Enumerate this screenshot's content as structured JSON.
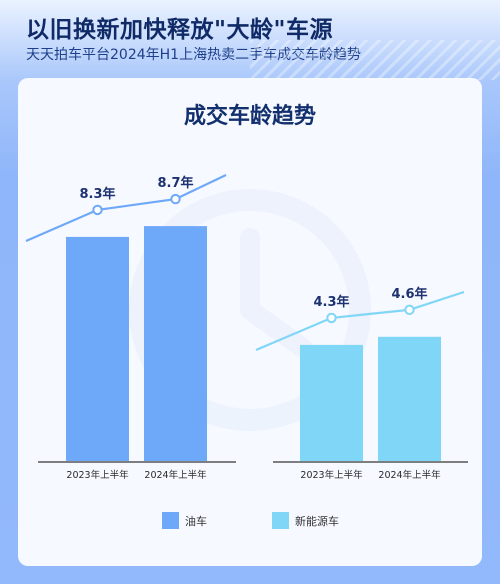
{
  "header": {
    "title": "以旧换新加快释放\"大龄\"车源",
    "subtitle": "天天拍车平台2024年H1上海热卖二手车成交车龄趋势"
  },
  "chart_data": {
    "type": "bar",
    "title": "成交车龄趋势",
    "categories": [
      "2023年上半年",
      "2024年上半年"
    ],
    "series": [
      {
        "name": "油车",
        "values": [
          8.3,
          8.7
        ],
        "labels": [
          "8.3年",
          "8.7年"
        ],
        "color": "#6ea8f8",
        "line_color": "#6ea8f8"
      },
      {
        "name": "新能源车",
        "values": [
          4.3,
          4.6
        ],
        "labels": [
          "4.3年",
          "4.6年"
        ],
        "color": "#7fd6f7",
        "line_color": "#7fd6f7"
      }
    ],
    "legend_position": "bottom",
    "grid": false
  }
}
